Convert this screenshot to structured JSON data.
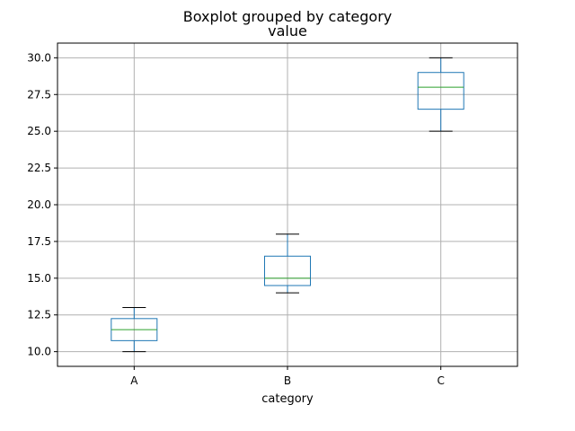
{
  "chart_data": {
    "type": "boxplot",
    "suptitle": "Boxplot grouped by category",
    "title": "value",
    "xlabel": "category",
    "ylabel": "",
    "ylim": [
      9.0,
      31.0
    ],
    "yticks": [
      "10.0",
      "12.5",
      "15.0",
      "17.5",
      "20.0",
      "22.5",
      "25.0",
      "27.5",
      "30.0"
    ],
    "grid": true,
    "box_color": "#1f77b4",
    "median_color": "#2ca02c",
    "whisker_color": "#1f77b4",
    "cap_color": "#000000",
    "grid_color": "#b0b0b0",
    "categories": [
      "A",
      "B",
      "C"
    ],
    "boxes": [
      {
        "category": "A",
        "whisker_low": 10.0,
        "q1": 10.75,
        "median": 11.5,
        "q3": 12.25,
        "whisker_high": 13.0
      },
      {
        "category": "B",
        "whisker_low": 14.0,
        "q1": 14.5,
        "median": 15.0,
        "q3": 16.5,
        "whisker_high": 18.0
      },
      {
        "category": "C",
        "whisker_low": 25.0,
        "q1": 26.5,
        "median": 28.0,
        "q3": 29.0,
        "whisker_high": 30.0
      }
    ]
  }
}
